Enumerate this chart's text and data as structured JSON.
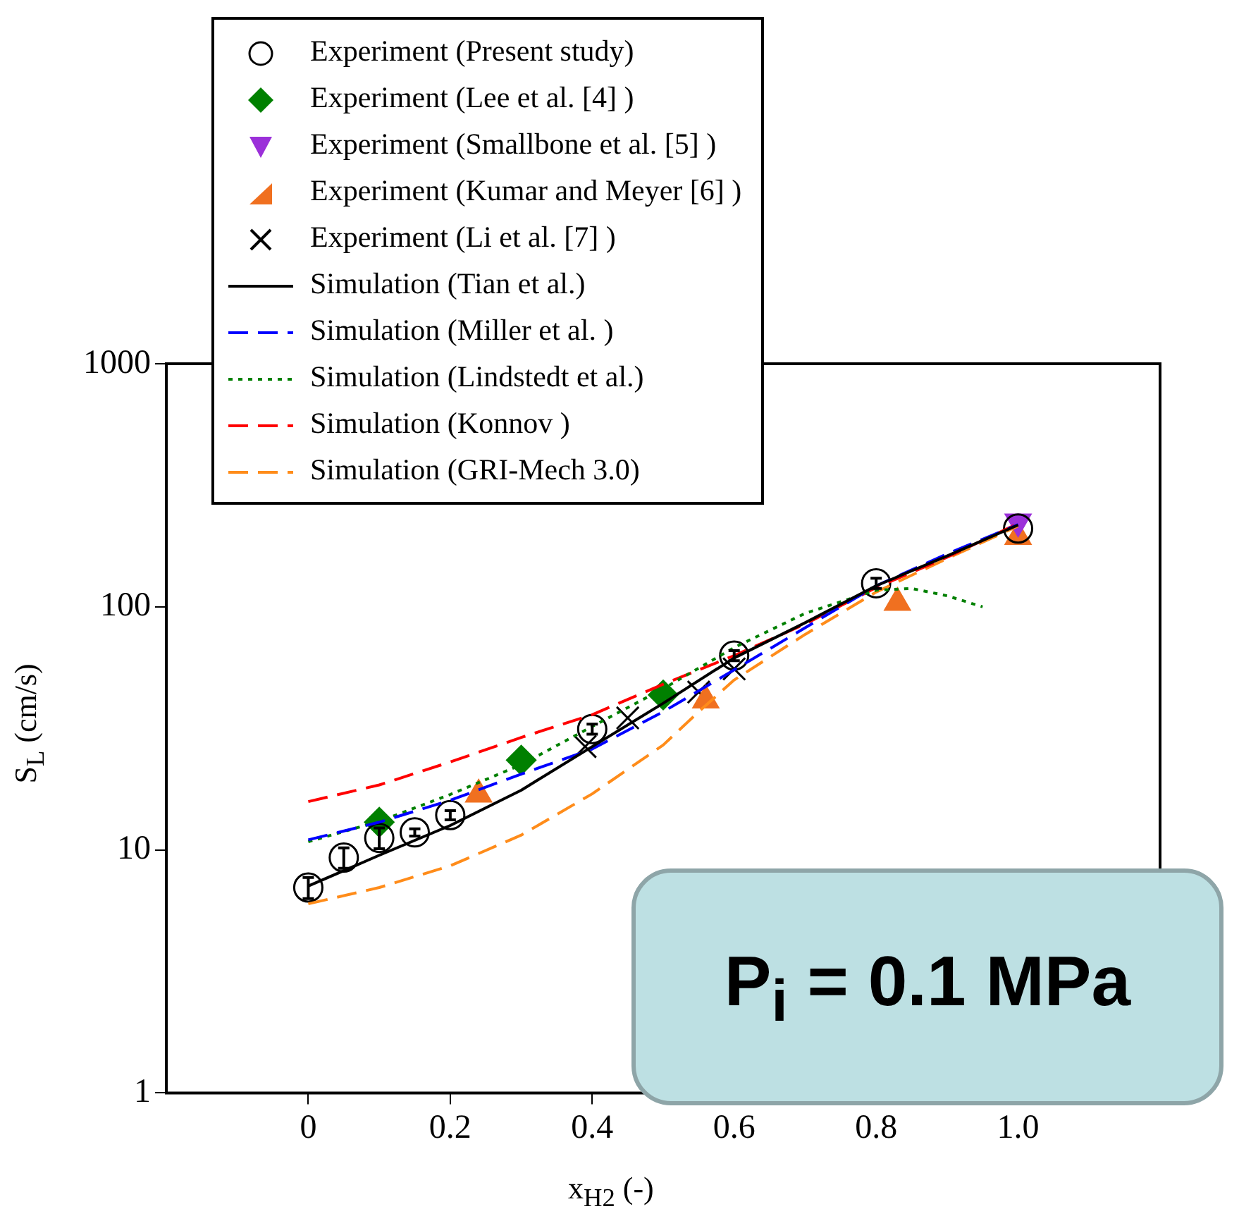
{
  "chart_data": {
    "type": "scatter",
    "xlabel": "x$_{H2}$ (-)",
    "ylabel": "S$_{L}$ (cm/s)",
    "xlim": [
      -0.2,
      1.2
    ],
    "ylim": [
      1,
      1000
    ],
    "log": "y",
    "xticks": [
      0,
      0.2,
      0.4,
      0.6,
      0.8,
      {
        "value": 1,
        "label": "1.0"
      }
    ],
    "yticks": [
      1,
      10,
      100,
      1000
    ],
    "grid": false,
    "legend": "top left",
    "annotations": [
      "P$_{i}$ = 0.1 MPa"
    ],
    "series": [
      {
        "name": "Experiment (Present study)",
        "marker": "circle",
        "color": "#000000",
        "x": [
          0,
          0.05,
          0.1,
          0.15,
          0.2,
          0.4,
          0.6,
          0.8,
          1.0
        ],
        "values": [
          7,
          9.3,
          11.2,
          11.8,
          13.9,
          31.4,
          63,
          125,
          210
        ],
        "errors": [
          0.7,
          0.9,
          1.1,
          0.4,
          0.6,
          1.5,
          3,
          6,
          null
        ]
      },
      {
        "name": "Experiment (Lee et al. [4]   )",
        "marker": "diamond",
        "color": "#008000",
        "x": [
          0.1,
          0.3,
          0.5
        ],
        "values": [
          13,
          23.4,
          43.4
        ]
      },
      {
        "name": "Experiment (Smallbone et al. [5]   )",
        "marker": "triangle",
        "color": "#9b30d9",
        "x": [
          1.0
        ],
        "values": [
          224
        ]
      },
      {
        "name": "Experiment (Kumar and Meyer [6]   )",
        "marker": "triangle",
        "color": "#f07020",
        "x": [
          0.24,
          0.56,
          0.83,
          1.0
        ],
        "values": [
          16.9,
          41.2,
          104,
          194
        ]
      },
      {
        "name": "Experiment (Li et al.  [7]  )",
        "marker": "cross",
        "color": "#000000",
        "x": [
          0.39,
          0.45,
          0.55,
          0.6
        ],
        "values": [
          26.6,
          34.9,
          44.6,
          55.5
        ]
      },
      {
        "name": "Simulation (Tian et al.)",
        "type": "line",
        "marker": "none",
        "line_style": "solid",
        "color": "#000000",
        "x": [
          0,
          0.1,
          0.2,
          0.3,
          0.4,
          0.5,
          0.6,
          0.7,
          0.8,
          0.9,
          1.0
        ],
        "values": [
          7.1,
          9.5,
          12.6,
          17.6,
          26.6,
          40.1,
          61.6,
          86,
          122,
          162,
          217
        ]
      },
      {
        "name": "Simulation (Miller et al. )",
        "type": "line",
        "marker": "none",
        "line_style": "dashed",
        "color": "#0000ff",
        "x": [
          0,
          0.1,
          0.2,
          0.3,
          0.4,
          0.5,
          0.6,
          0.7,
          0.8,
          0.9,
          1.0
        ],
        "values": [
          11,
          13,
          16,
          20.5,
          26,
          37,
          55,
          82,
          122,
          165,
          218
        ]
      },
      {
        "name": "Simulation (Lindstedt et al.)",
        "type": "line",
        "marker": "none",
        "line_style": "dotted",
        "color": "#008000",
        "x": [
          0,
          0.1,
          0.2,
          0.3,
          0.4,
          0.5,
          0.6,
          0.7,
          0.8,
          0.85,
          0.9,
          0.95
        ],
        "values": [
          10.8,
          13.1,
          16.9,
          22.4,
          32.2,
          46,
          68,
          94,
          117,
          119,
          111,
          100
        ]
      },
      {
        "name": "Simulation (Konnov )",
        "type": "line",
        "marker": "none",
        "line_style": "dashed",
        "color": "#ff0000",
        "x": [
          0,
          0.1,
          0.2,
          0.3,
          0.4,
          0.5,
          0.6,
          0.7,
          0.8,
          0.9,
          1.0
        ],
        "values": [
          15.8,
          18.5,
          23,
          29,
          36,
          48,
          63,
          85,
          120,
          160,
          220
        ]
      },
      {
        "name": "Simulation (GRI-Mech 3.0)",
        "type": "line",
        "marker": "none",
        "line_style": "dashed",
        "color": "#ff8c1a",
        "x": [
          0,
          0.1,
          0.2,
          0.3,
          0.4,
          0.5,
          0.55,
          0.6,
          0.7,
          0.8,
          0.9,
          1.0
        ],
        "values": [
          6,
          7,
          8.6,
          11.5,
          17,
          27,
          37,
          50,
          77,
          115,
          158,
          215
        ]
      }
    ]
  }
}
